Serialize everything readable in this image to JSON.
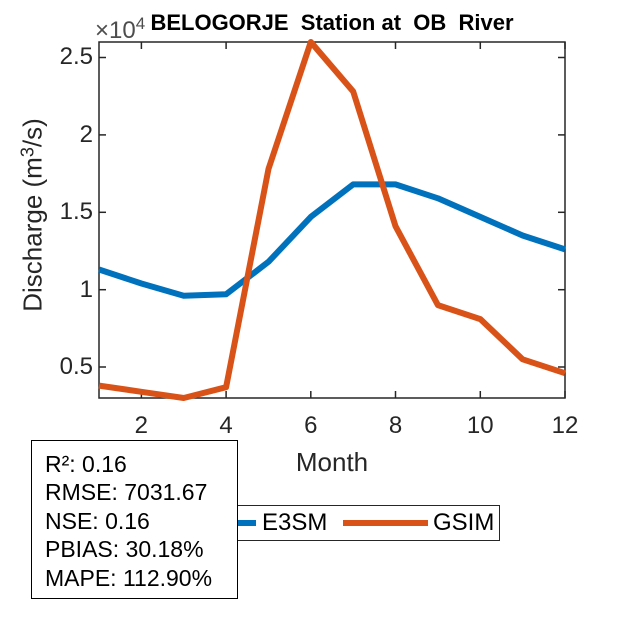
{
  "title": "BELOGORJE  Station at  OB  River",
  "axes": {
    "exponent_prefix": "×10",
    "exponent_power": "4",
    "x_label": "Month",
    "y_label_prefix": "Discharge (m",
    "y_label_sup": "3",
    "y_label_suffix": "/s)"
  },
  "legend": {
    "items": [
      {
        "label": "E3SM",
        "color": "#0072BD"
      },
      {
        "label": "GSIM",
        "color": "#D95319"
      }
    ]
  },
  "stats_box": {
    "lines": [
      "R²: 0.16",
      "RMSE: 7031.67",
      "NSE: 0.16",
      "PBIAS: 30.18%",
      "MAPE: 112.90%"
    ]
  },
  "chart_data": {
    "type": "line",
    "title": "BELOGORJE  Station at  OB  River",
    "xlabel": "Month",
    "ylabel": "Discharge (m³/s)",
    "y_scale_factor": "×10⁴",
    "x": [
      1,
      2,
      3,
      4,
      5,
      6,
      7,
      8,
      9,
      10,
      11,
      12
    ],
    "series": [
      {
        "name": "E3SM",
        "color": "#0072BD",
        "values": [
          1.13,
          1.04,
          0.96,
          0.97,
          1.18,
          1.47,
          1.68,
          1.68,
          1.59,
          1.47,
          1.35,
          1.26
        ]
      },
      {
        "name": "GSIM",
        "color": "#D95319",
        "values": [
          0.38,
          0.34,
          0.3,
          0.37,
          1.78,
          2.6,
          2.28,
          1.41,
          0.9,
          0.81,
          0.55,
          0.46
        ]
      }
    ],
    "xlim": [
      1,
      12
    ],
    "ylim": [
      0.3,
      2.6
    ],
    "x_ticks": [
      2,
      4,
      6,
      8,
      10,
      12
    ],
    "y_ticks": [
      0.5,
      1,
      1.5,
      2,
      2.5
    ],
    "grid": false,
    "legend_position": "below"
  }
}
